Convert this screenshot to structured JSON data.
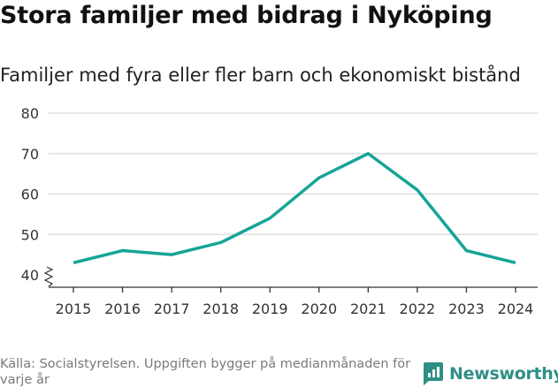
{
  "header": {
    "title": "Stora familjer med bidrag i Nyköping",
    "subtitle": "Familjer med fyra eller fler barn och ekonomiskt bistånd"
  },
  "footer": {
    "source": "Källa: Socialstyrelsen. Uppgiften bygger på medianmånaden för varje år",
    "brand": "Newsworthy"
  },
  "colors": {
    "line": "#15a596",
    "grid": "#d9d9d9",
    "brand": "#2f8f86"
  },
  "chart_data": {
    "type": "line",
    "title": "Stora familjer med bidrag i Nyköping",
    "subtitle": "Familjer med fyra eller fler barn och ekonomiskt bistånd",
    "xlabel": "",
    "ylabel": "",
    "x": [
      "2015",
      "2016",
      "2017",
      "2018",
      "2019",
      "2020",
      "2021",
      "2022",
      "2023",
      "2024"
    ],
    "series": [
      {
        "name": "Familjer",
        "values": [
          43,
          46,
          45,
          48,
          54,
          64,
          70,
          61,
          46,
          43
        ]
      }
    ],
    "yticks": [
      40,
      50,
      60,
      70,
      80
    ],
    "ylim": [
      40,
      80
    ],
    "axis_break": true,
    "grid": true,
    "legend": "none"
  }
}
